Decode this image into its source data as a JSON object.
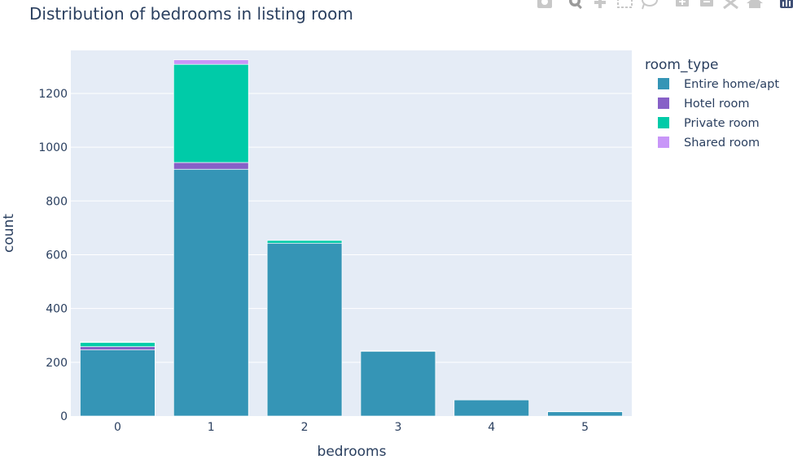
{
  "chart_data": {
    "type": "bar",
    "barmode": "stack",
    "title": "Distribution of bedrooms in listing room",
    "xlabel": "bedrooms",
    "ylabel": "count",
    "categories": [
      "0",
      "1",
      "2",
      "3",
      "4",
      "5"
    ],
    "ylim": [
      0,
      1360
    ],
    "yticks": [
      0,
      200,
      400,
      600,
      800,
      1000,
      1200
    ],
    "legend_title": "room_type",
    "legend_position": "right",
    "grid": true,
    "series": [
      {
        "name": "Entire home/apt",
        "color": "#3595b6",
        "values": [
          246,
          918,
          643,
          241,
          60,
          16
        ]
      },
      {
        "name": "Hotel room",
        "color": "#8760c7",
        "values": [
          12,
          25,
          0,
          0,
          0,
          0
        ]
      },
      {
        "name": "Private room",
        "color": "#00cba8",
        "values": [
          16,
          365,
          10,
          2,
          0,
          1
        ]
      },
      {
        "name": "Shared room",
        "color": "#c896f8",
        "values": [
          2,
          17,
          0,
          0,
          0,
          0
        ]
      }
    ]
  },
  "colors": {
    "plot_background": "#e5ecf6",
    "gridline": "#ffffff",
    "text": "#2a3f5f"
  },
  "modebar": {
    "icons": [
      "camera-icon",
      "zoom-icon",
      "pan-icon",
      "box-select-icon",
      "lasso-select-icon",
      "zoom-in-icon",
      "zoom-out-icon",
      "autoscale-icon",
      "reset-axes-icon",
      "plotly-logo-icon"
    ]
  }
}
